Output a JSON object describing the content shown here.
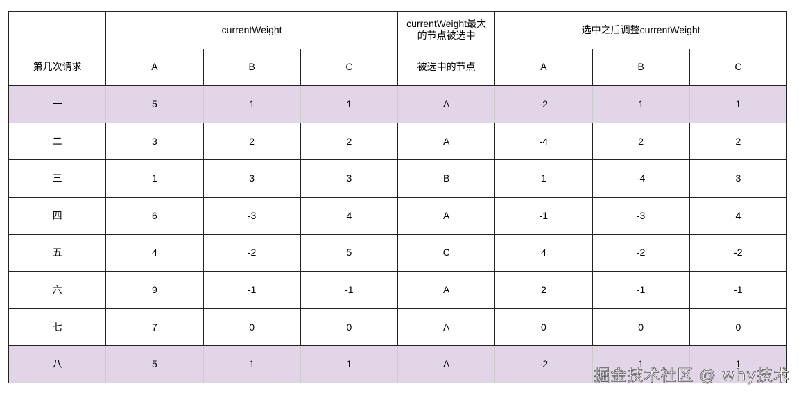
{
  "header": {
    "group_current": "currentWeight",
    "group_selected": "currentWeight最大的节点被选中",
    "group_adjusted": "选中之后调整currentWeight",
    "col_request": "第几次请求",
    "col_selected": "被选中的节点",
    "nodes": [
      "A",
      "B",
      "C"
    ]
  },
  "highlight_color": "#e1d5e7",
  "rows": [
    {
      "request": "一",
      "current": [
        "5",
        "1",
        "1"
      ],
      "selected": "A",
      "adjusted": [
        "-2",
        "1",
        "1"
      ],
      "highlight": true
    },
    {
      "request": "二",
      "current": [
        "3",
        "2",
        "2"
      ],
      "selected": "A",
      "adjusted": [
        "-4",
        "2",
        "2"
      ],
      "highlight": false
    },
    {
      "request": "三",
      "current": [
        "1",
        "3",
        "3"
      ],
      "selected": "B",
      "adjusted": [
        "1",
        "-4",
        "3"
      ],
      "highlight": false
    },
    {
      "request": "四",
      "current": [
        "6",
        "-3",
        "4"
      ],
      "selected": "A",
      "adjusted": [
        "-1",
        "-3",
        "4"
      ],
      "highlight": false
    },
    {
      "request": "五",
      "current": [
        "4",
        "-2",
        "5"
      ],
      "selected": "C",
      "adjusted": [
        "4",
        "-2",
        "-2"
      ],
      "highlight": false
    },
    {
      "request": "六",
      "current": [
        "9",
        "-1",
        "-1"
      ],
      "selected": "A",
      "adjusted": [
        "2",
        "-1",
        "-1"
      ],
      "highlight": false
    },
    {
      "request": "七",
      "current": [
        "7",
        "0",
        "0"
      ],
      "selected": "A",
      "adjusted": [
        "0",
        "0",
        "0"
      ],
      "highlight": false
    },
    {
      "request": "八",
      "current": [
        "5",
        "1",
        "1"
      ],
      "selected": "A",
      "adjusted": [
        "-2",
        "1",
        "1"
      ],
      "highlight": true
    }
  ],
  "watermark": "掘金技术社区 @ why技术"
}
